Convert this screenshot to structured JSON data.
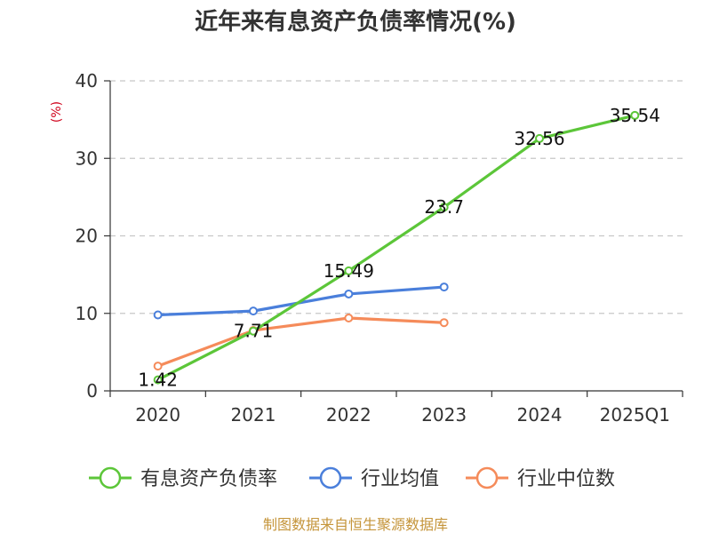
{
  "chart_data": {
    "type": "line",
    "title": "近年来有息资产负债率情况(%)",
    "ylabel": "(%)",
    "xlabel": "",
    "categories": [
      "2020",
      "2021",
      "2022",
      "2023",
      "2024",
      "2025Q1"
    ],
    "ylim": [
      0,
      40
    ],
    "yticks": [
      0,
      10,
      20,
      30,
      40
    ],
    "grid": true,
    "legend_position": "bottom",
    "series": [
      {
        "name": "有息资产负债率",
        "color": "#5cc639",
        "values": [
          1.42,
          7.71,
          15.49,
          23.7,
          32.56,
          35.54
        ],
        "labels": [
          "1.42",
          "7.71",
          "15.49",
          "23.7",
          "32.56",
          "35.54"
        ]
      },
      {
        "name": "行业均值",
        "color": "#4a7fdb",
        "values": [
          9.8,
          10.3,
          12.5,
          13.4,
          null,
          null
        ]
      },
      {
        "name": "行业中位数",
        "color": "#f58b5a",
        "values": [
          3.2,
          7.8,
          9.4,
          8.8,
          null,
          null
        ]
      }
    ]
  },
  "footer": "制图数据来自恒生聚源数据库"
}
